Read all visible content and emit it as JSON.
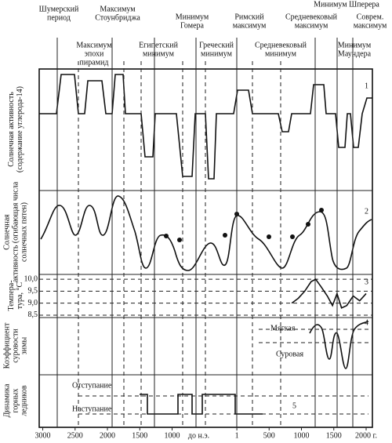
{
  "chart_data": {
    "type": "line",
    "period_labels_top": [
      [
        "Шумерский",
        "период"
      ],
      [
        "Максимум",
        "Стоунбриджа"
      ],
      [
        "Минимум",
        "Гомера"
      ],
      [
        "Римский",
        "максимум"
      ],
      [
        "Средневековый",
        "максимум"
      ],
      [
        "Минимум Шперера"
      ],
      [
        "Соврем.",
        "максимум"
      ]
    ],
    "period_labels_bottom": [
      [
        "Максимум",
        "эпохи",
        "пирамид"
      ],
      [
        "Египетский",
        "минимум"
      ],
      [
        "Греческий",
        "минимум"
      ],
      [
        "Средневековый",
        "минимум"
      ],
      [
        "Минимум",
        "Маундера"
      ]
    ],
    "panels": [
      {
        "label": [
          "Солнечная активность",
          "(содержание углерода-14)"
        ],
        "number": "1"
      },
      {
        "label": [
          "Солнечная",
          "активность (огибающая числа",
          "солнечных пятен)"
        ],
        "number": "2"
      },
      {
        "label": [
          "Темпера-",
          "тура, °С"
        ],
        "number": "3"
      },
      {
        "label": [
          "Коэффициент",
          "суровости",
          "зимы"
        ],
        "number": "4",
        "notes": [
          "Мягкая",
          "Суровая"
        ]
      },
      {
        "label": [
          "Динамика",
          "горных",
          "ледников"
        ],
        "number": "5",
        "notes": [
          "Отступание",
          "Наступание"
        ]
      }
    ],
    "xlim": [
      -3055,
      2097
    ],
    "xticks": [
      {
        "value": -3000,
        "label": "3000"
      },
      {
        "value": -2500,
        "label": "2500"
      },
      {
        "value": -2000,
        "label": "2000"
      },
      {
        "value": -1500,
        "label": "1500"
      },
      {
        "value": -1000,
        "label": "1000"
      },
      1,
      500,
      1000,
      1500,
      {
        "value": 2000,
        "label": "2000 г."
      }
    ],
    "x_note": "до н.э.",
    "temperature": {
      "x": [
        850,
        950,
        1050,
        1150,
        1220,
        1300,
        1400,
        1480,
        1550,
        1620,
        1700,
        1800,
        1900,
        2000
      ],
      "values": [
        9.0,
        9.2,
        9.5,
        9.9,
        10.0,
        9.7,
        9.3,
        8.9,
        9.4,
        8.8,
        8.9,
        9.3,
        9.1,
        9.4
      ],
      "ylim": [
        8.4,
        10.2
      ],
      "yticks": [
        {
          "value": 10.0,
          "label": "10,0"
        },
        {
          "value": 9.5,
          "label": "9,5"
        },
        {
          "value": 9.0,
          "label": "9,0"
        },
        {
          "value": 8.5,
          "label": "8,5"
        }
      ],
      "grid": true
    }
  }
}
